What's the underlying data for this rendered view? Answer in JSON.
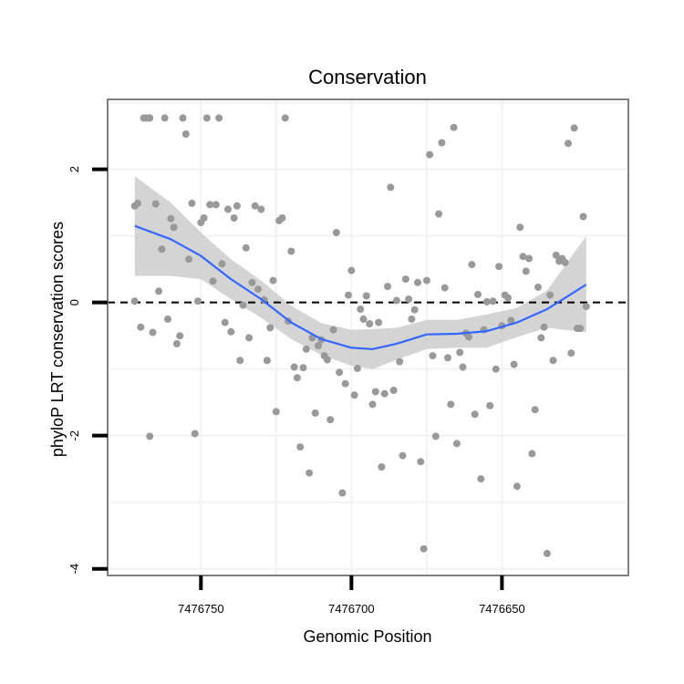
{
  "chart_data": {
    "type": "scatter",
    "title": "Conservation",
    "xlabel": "Genomic Position",
    "ylabel": "phyloP LRT conservation scores",
    "x_reversed": true,
    "xlim": [
      7476781,
      7476608
    ],
    "ylim": [
      -4.1,
      3.05
    ],
    "x_ticks": [
      7476750,
      7476700,
      7476650
    ],
    "x_tick_labels": [
      "7476750",
      "7476700",
      "7476650"
    ],
    "y_ticks": [
      -4,
      -2,
      0,
      2
    ],
    "y_tick_labels": [
      "-4",
      "-2",
      "0",
      "2"
    ],
    "grid": true,
    "reference_line": {
      "y": 0,
      "style": "dashed"
    },
    "colors": {
      "points": "#999999",
      "smooth_line": "#3366FF",
      "confidence_band": "#CCCCCC",
      "panel_border": "#7F7F7F",
      "grid": "#F2F2F2"
    },
    "points": [
      {
        "x": 7476772,
        "y": 0.02
      },
      {
        "x": 7476772,
        "y": 1.45
      },
      {
        "x": 7476771,
        "y": 1.49
      },
      {
        "x": 7476770,
        "y": -0.37
      },
      {
        "x": 7476769,
        "y": 2.77
      },
      {
        "x": 7476768,
        "y": 2.77
      },
      {
        "x": 7476767,
        "y": 2.77
      },
      {
        "x": 7476767,
        "y": -2.01
      },
      {
        "x": 7476766,
        "y": -0.45
      },
      {
        "x": 7476765,
        "y": 1.48
      },
      {
        "x": 7476764,
        "y": 0.17
      },
      {
        "x": 7476763,
        "y": 0.8
      },
      {
        "x": 7476762,
        "y": 2.77
      },
      {
        "x": 7476761,
        "y": -0.25
      },
      {
        "x": 7476760,
        "y": 1.26
      },
      {
        "x": 7476759,
        "y": 1.13
      },
      {
        "x": 7476758,
        "y": -0.62
      },
      {
        "x": 7476757,
        "y": -0.5
      },
      {
        "x": 7476756,
        "y": 2.77
      },
      {
        "x": 7476755,
        "y": 2.53
      },
      {
        "x": 7476754,
        "y": 0.65
      },
      {
        "x": 7476753,
        "y": 1.49
      },
      {
        "x": 7476752,
        "y": -1.97
      },
      {
        "x": 7476751,
        "y": 0.02
      },
      {
        "x": 7476750,
        "y": 1.2
      },
      {
        "x": 7476749,
        "y": 1.27
      },
      {
        "x": 7476748,
        "y": 2.77
      },
      {
        "x": 7476747,
        "y": 1.47
      },
      {
        "x": 7476746,
        "y": 0.32
      },
      {
        "x": 7476745,
        "y": 1.47
      },
      {
        "x": 7476744,
        "y": 2.77
      },
      {
        "x": 7476743,
        "y": 0.58
      },
      {
        "x": 7476742,
        "y": -0.3
      },
      {
        "x": 7476741,
        "y": 1.4
      },
      {
        "x": 7476740,
        "y": -0.44
      },
      {
        "x": 7476739,
        "y": 1.27
      },
      {
        "x": 7476738,
        "y": 1.45
      },
      {
        "x": 7476737,
        "y": -0.87
      },
      {
        "x": 7476736,
        "y": -0.04
      },
      {
        "x": 7476735,
        "y": 0.82
      },
      {
        "x": 7476734,
        "y": -0.53
      },
      {
        "x": 7476733,
        "y": 0.3
      },
      {
        "x": 7476732,
        "y": 1.45
      },
      {
        "x": 7476731,
        "y": 0.2
      },
      {
        "x": 7476730,
        "y": 1.4
      },
      {
        "x": 7476729,
        "y": 0.04
      },
      {
        "x": 7476728,
        "y": -0.87
      },
      {
        "x": 7476727,
        "y": -0.38
      },
      {
        "x": 7476726,
        "y": 0.33
      },
      {
        "x": 7476725,
        "y": -1.64
      },
      {
        "x": 7476724,
        "y": 1.23
      },
      {
        "x": 7476723,
        "y": 1.27
      },
      {
        "x": 7476722,
        "y": 2.77
      },
      {
        "x": 7476721,
        "y": -0.28
      },
      {
        "x": 7476720,
        "y": 0.77
      },
      {
        "x": 7476719,
        "y": -0.97
      },
      {
        "x": 7476718,
        "y": -1.13
      },
      {
        "x": 7476717,
        "y": -2.17
      },
      {
        "x": 7476716,
        "y": -0.98
      },
      {
        "x": 7476715,
        "y": -0.7
      },
      {
        "x": 7476714,
        "y": -2.56
      },
      {
        "x": 7476713,
        "y": -0.53
      },
      {
        "x": 7476712,
        "y": -1.66
      },
      {
        "x": 7476711,
        "y": -0.65
      },
      {
        "x": 7476710,
        "y": -0.56
      },
      {
        "x": 7476709,
        "y": -0.8
      },
      {
        "x": 7476708,
        "y": -0.86
      },
      {
        "x": 7476707,
        "y": -1.76
      },
      {
        "x": 7476706,
        "y": -0.41
      },
      {
        "x": 7476705,
        "y": 1.05
      },
      {
        "x": 7476704,
        "y": -1.05
      },
      {
        "x": 7476703,
        "y": -2.86
      },
      {
        "x": 7476702,
        "y": -1.22
      },
      {
        "x": 7476701,
        "y": 0.11
      },
      {
        "x": 7476700,
        "y": 0.48
      },
      {
        "x": 7476699,
        "y": -1.39
      },
      {
        "x": 7476698,
        "y": -0.99
      },
      {
        "x": 7476697,
        "y": -0.1
      },
      {
        "x": 7476696,
        "y": -0.25
      },
      {
        "x": 7476695,
        "y": 0.1
      },
      {
        "x": 7476694,
        "y": -0.32
      },
      {
        "x": 7476693,
        "y": -1.53
      },
      {
        "x": 7476692,
        "y": -1.34
      },
      {
        "x": 7476691,
        "y": -0.3
      },
      {
        "x": 7476690,
        "y": -2.47
      },
      {
        "x": 7476689,
        "y": -1.37
      },
      {
        "x": 7476688,
        "y": 0.24
      },
      {
        "x": 7476687,
        "y": 1.73
      },
      {
        "x": 7476686,
        "y": -1.32
      },
      {
        "x": 7476685,
        "y": 0.03
      },
      {
        "x": 7476684,
        "y": -0.89
      },
      {
        "x": 7476683,
        "y": -2.3
      },
      {
        "x": 7476682,
        "y": 0.35
      },
      {
        "x": 7476681,
        "y": 0.05
      },
      {
        "x": 7476680,
        "y": -0.25
      },
      {
        "x": 7476679,
        "y": -0.11
      },
      {
        "x": 7476678,
        "y": 0.3
      },
      {
        "x": 7476677,
        "y": -2.39
      },
      {
        "x": 7476676,
        "y": -3.7
      },
      {
        "x": 7476675,
        "y": 0.33
      },
      {
        "x": 7476674,
        "y": 2.22
      },
      {
        "x": 7476673,
        "y": -0.8
      },
      {
        "x": 7476672,
        "y": -2.01
      },
      {
        "x": 7476671,
        "y": 1.33
      },
      {
        "x": 7476670,
        "y": 2.4
      },
      {
        "x": 7476669,
        "y": 0.22
      },
      {
        "x": 7476668,
        "y": -0.83
      },
      {
        "x": 7476667,
        "y": -1.53
      },
      {
        "x": 7476666,
        "y": 2.63
      },
      {
        "x": 7476665,
        "y": -2.12
      },
      {
        "x": 7476664,
        "y": -0.75
      },
      {
        "x": 7476663,
        "y": -0.97
      },
      {
        "x": 7476662,
        "y": -0.46
      },
      {
        "x": 7476661,
        "y": -0.52
      },
      {
        "x": 7476660,
        "y": 0.57
      },
      {
        "x": 7476659,
        "y": -1.68
      },
      {
        "x": 7476658,
        "y": 0.12
      },
      {
        "x": 7476657,
        "y": -2.65
      },
      {
        "x": 7476656,
        "y": -0.41
      },
      {
        "x": 7476655,
        "y": 0.01
      },
      {
        "x": 7476654,
        "y": -1.55
      },
      {
        "x": 7476653,
        "y": 0.02
      },
      {
        "x": 7476652,
        "y": -1.0
      },
      {
        "x": 7476651,
        "y": 0.54
      },
      {
        "x": 7476650,
        "y": -0.35
      },
      {
        "x": 7476649,
        "y": 0.11
      },
      {
        "x": 7476648,
        "y": 0.07
      },
      {
        "x": 7476647,
        "y": -0.27
      },
      {
        "x": 7476646,
        "y": -0.93
      },
      {
        "x": 7476645,
        "y": -2.76
      },
      {
        "x": 7476644,
        "y": 1.13
      },
      {
        "x": 7476643,
        "y": 0.69
      },
      {
        "x": 7476642,
        "y": 0.47
      },
      {
        "x": 7476641,
        "y": 0.66
      },
      {
        "x": 7476640,
        "y": -2.27
      },
      {
        "x": 7476639,
        "y": -1.61
      },
      {
        "x": 7476638,
        "y": 0.23
      },
      {
        "x": 7476637,
        "y": -0.53
      },
      {
        "x": 7476636,
        "y": -0.37
      },
      {
        "x": 7476635,
        "y": -3.77
      },
      {
        "x": 7476634,
        "y": 0.11
      },
      {
        "x": 7476633,
        "y": -0.87
      },
      {
        "x": 7476632,
        "y": 0.71
      },
      {
        "x": 7476631,
        "y": 0.62
      },
      {
        "x": 7476630,
        "y": 0.66
      },
      {
        "x": 7476629,
        "y": 0.6
      },
      {
        "x": 7476628,
        "y": 2.39
      },
      {
        "x": 7476627,
        "y": -0.76
      },
      {
        "x": 7476626,
        "y": 2.62
      },
      {
        "x": 7476625,
        "y": -0.39
      },
      {
        "x": 7476624,
        "y": -0.39
      },
      {
        "x": 7476623,
        "y": 1.29
      },
      {
        "x": 7476622,
        "y": -0.06
      }
    ],
    "smooth": {
      "x": [
        7476772,
        7476760,
        7476750,
        7476740,
        7476730,
        7476720,
        7476710,
        7476700,
        7476693,
        7476685,
        7476675,
        7476665,
        7476655,
        7476645,
        7476635,
        7476622
      ],
      "y": [
        1.15,
        0.95,
        0.7,
        0.35,
        0.05,
        -0.3,
        -0.55,
        -0.68,
        -0.7,
        -0.62,
        -0.48,
        -0.47,
        -0.43,
        -0.3,
        -0.1,
        0.27
      ],
      "lower": [
        0.4,
        0.4,
        0.35,
        0.05,
        -0.23,
        -0.55,
        -0.79,
        -0.95,
        -1.0,
        -0.86,
        -0.7,
        -0.68,
        -0.68,
        -0.52,
        -0.38,
        -0.45
      ],
      "upper": [
        1.9,
        1.5,
        1.05,
        0.65,
        0.33,
        -0.05,
        -0.31,
        -0.41,
        -0.4,
        -0.38,
        -0.26,
        -0.26,
        -0.18,
        -0.08,
        0.18,
        1.0
      ]
    }
  }
}
